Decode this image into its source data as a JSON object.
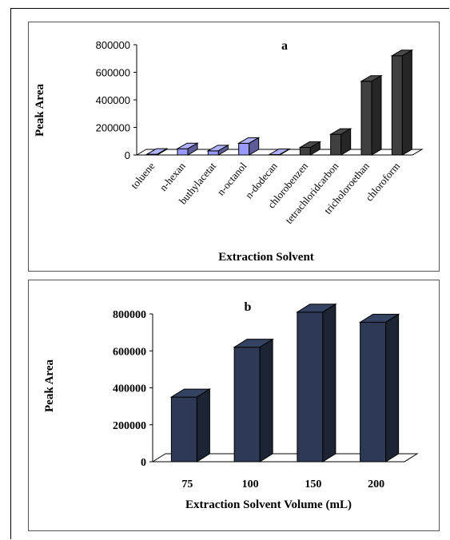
{
  "chart_data": [
    {
      "type": "bar",
      "title": "a",
      "xlabel": "Extraction Solvent",
      "ylabel": "Peak Area",
      "ylim": [
        0,
        800000
      ],
      "yticks": [
        "0",
        "200000",
        "400000",
        "600000",
        "800000"
      ],
      "categories": [
        "toluene",
        "n-hexan",
        "buthylacetat",
        "n-octanol",
        "n-dodecan",
        "chlorobenzen",
        "tetrachloridcarbon",
        "tricholoroethan",
        "chloroform"
      ],
      "values": [
        5000,
        45000,
        30000,
        85000,
        3000,
        55000,
        150000,
        535000,
        720000
      ],
      "colors": {
        "light": "#9999ff",
        "dark": "#404040"
      },
      "bar_color_group": [
        "light",
        "light",
        "light",
        "light",
        "light",
        "dark",
        "dark",
        "dark",
        "dark"
      ]
    },
    {
      "type": "bar",
      "title": "b",
      "xlabel": "Extraction Solvent Volume (mL)",
      "ylabel": "Peak Area",
      "ylim": [
        0,
        800000
      ],
      "yticks": [
        "0",
        "200000",
        "400000",
        "600000",
        "800000"
      ],
      "categories": [
        "75",
        "100",
        "150",
        "200"
      ],
      "values": [
        350000,
        620000,
        810000,
        755000
      ],
      "colors": {
        "bar": "#2e3a55"
      }
    }
  ]
}
